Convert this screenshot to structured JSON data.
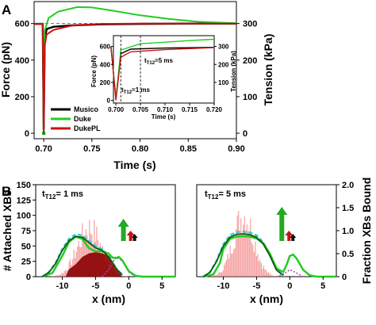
{
  "chart_data": [
    {
      "panel_label": "A",
      "type": "line",
      "xlabel": "Time (s)",
      "ylabel": "Force (pN)",
      "y2label": "Tension (kPa)",
      "xlim": [
        0.69,
        0.9
      ],
      "ylim": [
        -30,
        720
      ],
      "xticks": [
        "0.70",
        "0.75",
        "0.80",
        "0.85",
        "0.90"
      ],
      "yticks": [
        "0",
        "200",
        "400",
        "600"
      ],
      "y2ticks": [
        "0",
        "100",
        "200",
        "300"
      ],
      "legend": {
        "placement": "bottom-left",
        "entries": [
          "Musico",
          "Duke",
          "DukePL"
        ]
      },
      "colors": {
        "Musico": "#000000",
        "Duke": "#22cc22",
        "DukePL": "#cc1111"
      },
      "series": [
        {
          "name": "Musico",
          "x": [
            0.69,
            0.699,
            0.7,
            0.701,
            0.703,
            0.71,
            0.73,
            0.76,
            0.8,
            0.85,
            0.9
          ],
          "y": [
            598,
            598,
            20,
            520,
            570,
            582,
            590,
            596,
            598,
            600,
            600
          ]
        },
        {
          "name": "Duke",
          "x": [
            0.69,
            0.699,
            0.7,
            0.701,
            0.705,
            0.715,
            0.735,
            0.75,
            0.77,
            0.8,
            0.83,
            0.86,
            0.9
          ],
          "y": [
            598,
            598,
            20,
            560,
            630,
            665,
            690,
            688,
            672,
            645,
            625,
            610,
            602
          ]
        },
        {
          "name": "DukePL",
          "x": [
            0.69,
            0.699,
            0.7,
            0.701,
            0.703,
            0.71,
            0.73,
            0.76,
            0.8,
            0.85,
            0.9
          ],
          "y": [
            598,
            598,
            0,
            480,
            540,
            565,
            590,
            598,
            600,
            600,
            600
          ]
        }
      ],
      "inset": {
        "xlabel": "Time (s)",
        "ylabel": "Force (pN)",
        "y2label": "Tension (kPa)",
        "xlim": [
          0.6995,
          0.72
        ],
        "ylim": [
          -30,
          720
        ],
        "xticks": [
          "0.700",
          "0.705",
          "0.710",
          "0.715",
          "0.720"
        ],
        "yticks": [
          "0",
          "200",
          "400",
          "600"
        ],
        "y2ticks": [
          "100",
          "200",
          "300"
        ],
        "annotations": [
          "t",
          "T1",
          "2",
          "=1 ms",
          "t",
          "T1",
          "2",
          "=5 ms"
        ],
        "markers_x": [
          0.701,
          0.705
        ]
      }
    },
    {
      "panel_label": "B",
      "type": "histogram+line",
      "xlabel": "x (nm)",
      "ylabel": "# Attached XBs",
      "y2label": "Fraction XBs Bound",
      "xlim": [
        -14,
        7
      ],
      "ylim": [
        0,
        150
      ],
      "y2lim": [
        0,
        2.0
      ],
      "xticks": [
        "-10",
        "-5",
        "0",
        "5"
      ],
      "yticks": [
        "0",
        "25",
        "50",
        "75",
        "100",
        "125",
        "150"
      ],
      "y2ticks": [
        "0",
        "0.5",
        "1.0",
        "1.5",
        "2.0"
      ],
      "subplots": [
        {
          "title_parts": [
            "t",
            "T1",
            "2",
            "= 1 ms"
          ],
          "fraction_curve": {
            "x": [
              -13,
              -11.5,
              -10,
              -9,
              -8,
              -7,
              -6,
              -5,
              -4,
              -3,
              -2.5,
              -2,
              -1.5,
              -1,
              0,
              1,
              2,
              4,
              7
            ],
            "y": [
              0,
              0.08,
              0.45,
              0.75,
              0.87,
              0.82,
              0.62,
              0.55,
              0.55,
              0.5,
              0.42,
              0.4,
              0.43,
              0.36,
              0.12,
              0.02,
              0,
              0,
              0
            ]
          },
          "fit_curve": {
            "x": [
              -13,
              -12,
              -11,
              -10,
              -9,
              -8,
              -7,
              -6,
              -5,
              -4,
              -3,
              -2,
              -1
            ],
            "y": [
              0,
              0.1,
              0.3,
              0.6,
              0.82,
              0.92,
              0.9,
              0.78,
              0.66,
              0.6,
              0.45,
              0.2,
              0.04
            ]
          }
        },
        {
          "title_parts": [
            "t",
            "T1",
            "2",
            "= 5 ms"
          ],
          "fraction_curve": {
            "x": [
              -13,
              -11.5,
              -10.5,
              -10,
              -9,
              -8,
              -7,
              -6,
              -5,
              -4,
              -3,
              -2,
              -1,
              -0.5,
              0,
              0.5,
              1,
              2,
              3,
              4,
              7
            ],
            "y": [
              0,
              0.05,
              0.3,
              0.6,
              0.82,
              0.87,
              0.88,
              0.87,
              0.83,
              0.73,
              0.5,
              0.18,
              0.1,
              0.25,
              0.45,
              0.48,
              0.4,
              0.15,
              0.03,
              0,
              0
            ]
          },
          "fit_curve": {
            "x": [
              -13,
              -12,
              -11,
              -10,
              -9,
              -8,
              -7,
              -6,
              -5,
              -4,
              -3,
              -2,
              -1
            ],
            "y": [
              0,
              0.1,
              0.35,
              0.7,
              0.9,
              0.97,
              0.98,
              0.96,
              0.9,
              0.75,
              0.48,
              0.15,
              0.03
            ]
          }
        }
      ]
    }
  ]
}
